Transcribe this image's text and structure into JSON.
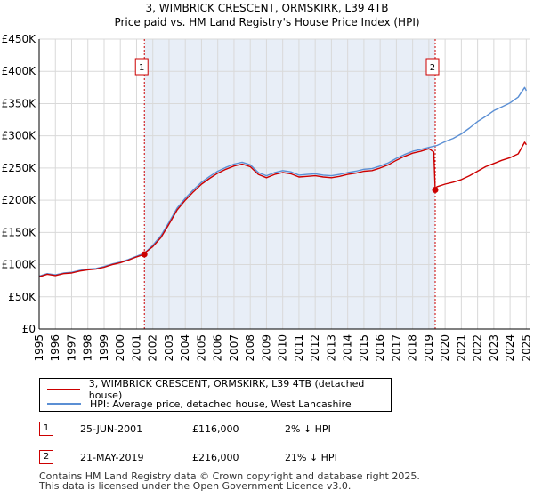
{
  "chart_data": {
    "type": "line",
    "title": "3, WIMBRICK CRESCENT, ORMSKIRK, L39 4TB",
    "subtitle": "Price paid vs. HM Land Registry's House Price Index (HPI)",
    "xlim": [
      1995,
      2025.2
    ],
    "ylim": [
      0,
      450000
    ],
    "x_ticks": [
      1995,
      1996,
      1997,
      1998,
      1999,
      2000,
      2001,
      2002,
      2003,
      2004,
      2005,
      2006,
      2007,
      2008,
      2009,
      2010,
      2011,
      2012,
      2013,
      2014,
      2015,
      2016,
      2017,
      2018,
      2019,
      2020,
      2021,
      2022,
      2023,
      2024,
      2025
    ],
    "y_ticks": [
      {
        "value": 0,
        "label": "£0"
      },
      {
        "value": 50000,
        "label": "£50K"
      },
      {
        "value": 100000,
        "label": "£100K"
      },
      {
        "value": 150000,
        "label": "£150K"
      },
      {
        "value": 200000,
        "label": "£200K"
      },
      {
        "value": 250000,
        "label": "£250K"
      },
      {
        "value": 300000,
        "label": "£300K"
      },
      {
        "value": 350000,
        "label": "£350K"
      },
      {
        "value": 400000,
        "label": "£400K"
      },
      {
        "value": 450000,
        "label": "£450K"
      }
    ],
    "grid": true,
    "shaded_period": [
      2001.48,
      2019.39
    ],
    "series": [
      {
        "name": "3, WIMBRICK CRESCENT, ORMSKIRK, L39 4TB (detached house)",
        "color": "#cc0000",
        "x": [
          1995.0,
          1995.5,
          1996.0,
          1996.5,
          1997.0,
          1997.5,
          1998.0,
          1998.5,
          1999.0,
          1999.5,
          2000.0,
          2000.5,
          2001.0,
          2001.48,
          2001.5,
          2002.0,
          2002.5,
          2003.0,
          2003.5,
          2004.0,
          2004.5,
          2005.0,
          2005.5,
          2006.0,
          2006.5,
          2007.0,
          2007.5,
          2008.0,
          2008.5,
          2009.0,
          2009.5,
          2010.0,
          2010.5,
          2011.0,
          2011.5,
          2012.0,
          2012.5,
          2013.0,
          2013.5,
          2014.0,
          2014.5,
          2015.0,
          2015.5,
          2016.0,
          2016.5,
          2017.0,
          2017.5,
          2018.0,
          2018.5,
          2019.0,
          2019.3,
          2019.39,
          2019.5,
          2020.0,
          2020.5,
          2021.0,
          2021.5,
          2022.0,
          2022.5,
          2023.0,
          2023.5,
          2024.0,
          2024.5,
          2024.9,
          2025.0
        ],
        "values": [
          81000,
          85000,
          83000,
          86000,
          87000,
          90000,
          92000,
          93000,
          96000,
          100000,
          103000,
          107000,
          112000,
          116000,
          118000,
          128000,
          142000,
          163000,
          185000,
          200000,
          213000,
          225000,
          234000,
          242000,
          248000,
          253000,
          256000,
          252000,
          240000,
          235000,
          240000,
          243000,
          241000,
          236000,
          237000,
          238000,
          236000,
          235000,
          237000,
          240000,
          242000,
          245000,
          246000,
          250000,
          255000,
          262000,
          268000,
          273000,
          276000,
          280000,
          275000,
          216000,
          221000,
          225000,
          228000,
          232000,
          238000,
          245000,
          252000,
          257000,
          262000,
          266000,
          272000,
          290000,
          286000
        ]
      },
      {
        "name": "HPI: Average price, detached house, West Lancashire",
        "color": "#5b8fd4",
        "x": [
          1995.0,
          1995.5,
          1996.0,
          1996.5,
          1997.0,
          1997.5,
          1998.0,
          1998.5,
          1999.0,
          1999.5,
          2000.0,
          2000.5,
          2001.0,
          2001.5,
          2002.0,
          2002.5,
          2003.0,
          2003.5,
          2004.0,
          2004.5,
          2005.0,
          2005.5,
          2006.0,
          2006.5,
          2007.0,
          2007.5,
          2008.0,
          2008.5,
          2009.0,
          2009.5,
          2010.0,
          2010.5,
          2011.0,
          2011.5,
          2012.0,
          2012.5,
          2013.0,
          2013.5,
          2014.0,
          2014.5,
          2015.0,
          2015.5,
          2016.0,
          2016.5,
          2017.0,
          2017.5,
          2018.0,
          2018.5,
          2019.0,
          2019.5,
          2020.0,
          2020.5,
          2021.0,
          2021.5,
          2022.0,
          2022.5,
          2023.0,
          2023.5,
          2024.0,
          2024.5,
          2024.9,
          2025.0
        ],
        "values": [
          82000,
          86000,
          84000,
          87000,
          88000,
          91000,
          93000,
          94000,
          97000,
          101000,
          104000,
          108000,
          113000,
          118000,
          130000,
          145000,
          166000,
          188000,
          203000,
          216000,
          228000,
          237000,
          245000,
          251000,
          256000,
          259000,
          255000,
          243000,
          238000,
          243000,
          246000,
          244000,
          239000,
          240000,
          241000,
          239000,
          238000,
          240000,
          243000,
          245000,
          248000,
          249000,
          253000,
          258000,
          265000,
          271000,
          276000,
          279000,
          282000,
          285000,
          291000,
          296000,
          303000,
          312000,
          322000,
          330000,
          339000,
          345000,
          351000,
          360000,
          375000,
          370000
        ]
      }
    ],
    "markers": [
      {
        "label": "1",
        "x": 2001.48,
        "y": 116000
      },
      {
        "label": "2",
        "x": 2019.39,
        "y": 216000
      }
    ]
  },
  "legend": {
    "red_label": "3, WIMBRICK CRESCENT, ORMSKIRK, L39 4TB (detached house)",
    "blue_label": "HPI: Average price, detached house, West Lancashire"
  },
  "sales": [
    {
      "num": "1",
      "date": "25-JUN-2001",
      "price": "£116,000",
      "hpi": "2% ↓ HPI"
    },
    {
      "num": "2",
      "date": "21-MAY-2019",
      "price": "£216,000",
      "hpi": "21% ↓ HPI"
    }
  ],
  "footer": {
    "line1": "Contains HM Land Registry data © Crown copyright and database right 2025.",
    "line2": "This data is licensed under the Open Government Licence v3.0."
  },
  "colors": {
    "red": "#cc0000",
    "blue": "#5b8fd4",
    "shade": "#e8eef7",
    "grid": "#d9d9d9"
  }
}
